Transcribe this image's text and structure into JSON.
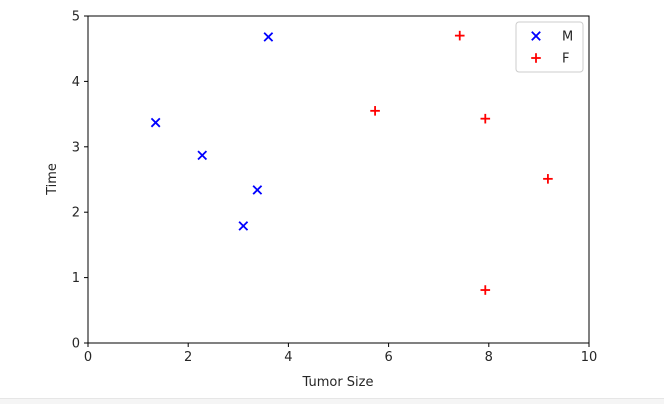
{
  "chart_data": {
    "type": "scatter",
    "title": "",
    "xlabel": "Tumor Size",
    "ylabel": "Time",
    "xlim": [
      0,
      10
    ],
    "ylim": [
      0,
      5
    ],
    "xticks": [
      0,
      2,
      4,
      6,
      8,
      10
    ],
    "yticks": [
      0,
      1,
      2,
      3,
      4,
      5
    ],
    "grid": false,
    "legend_position": "upper-right",
    "series": [
      {
        "name": "M",
        "marker": "x",
        "color": "#0000ff",
        "points": [
          {
            "x": 1.35,
            "y": 3.37
          },
          {
            "x": 2.28,
            "y": 2.87
          },
          {
            "x": 3.1,
            "y": 1.79
          },
          {
            "x": 3.38,
            "y": 2.34
          },
          {
            "x": 3.6,
            "y": 4.68
          }
        ]
      },
      {
        "name": "F",
        "marker": "+",
        "color": "#ff0000",
        "points": [
          {
            "x": 5.73,
            "y": 3.55
          },
          {
            "x": 7.42,
            "y": 4.7
          },
          {
            "x": 7.93,
            "y": 3.43
          },
          {
            "x": 7.93,
            "y": 0.81
          },
          {
            "x": 9.18,
            "y": 2.51
          }
        ]
      }
    ]
  }
}
